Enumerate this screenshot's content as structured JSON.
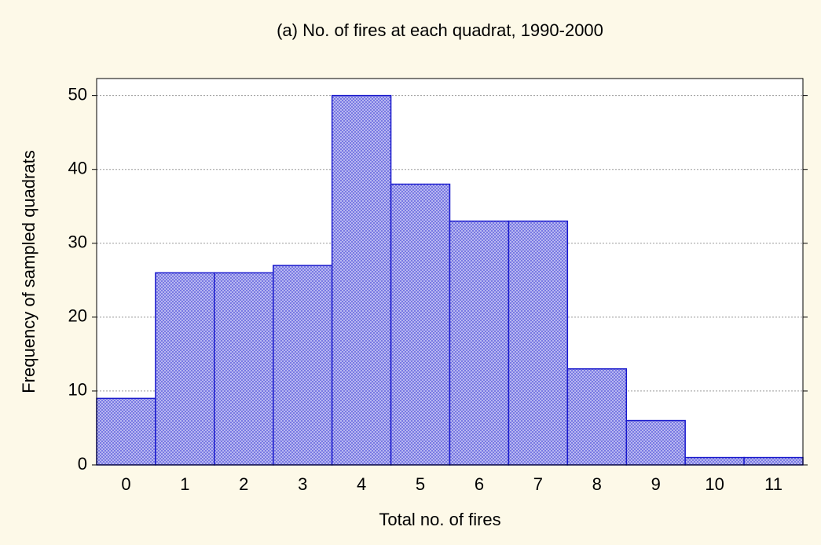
{
  "chart_data": {
    "type": "bar",
    "title": "(a) No. of fires at each quadrat, 1990-2000",
    "x_label": "Total no. of fires",
    "y_label": "Frequency of sampled quadrats",
    "categories": [
      "0",
      "1",
      "2",
      "3",
      "4",
      "5",
      "6",
      "7",
      "8",
      "9",
      "10",
      "11"
    ],
    "values": [
      9,
      26,
      26,
      27,
      50,
      38,
      33,
      33,
      13,
      6,
      1,
      1
    ],
    "color": "#1a1acc",
    "ylim": [
      0,
      52.3
    ],
    "yticks": [
      0,
      10,
      20,
      30,
      40,
      50
    ],
    "grid": true
  }
}
